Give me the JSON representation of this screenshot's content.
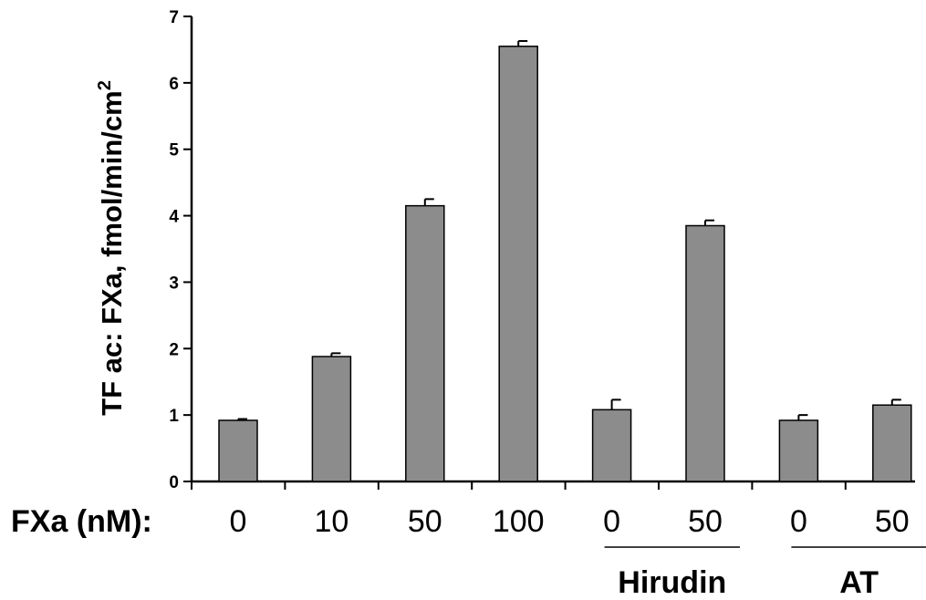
{
  "chart_data": {
    "type": "bar",
    "ylabel": "TF ac: FXa, fmol/min/cm",
    "ylabel_superscript": "2",
    "x_prefix_label": "FXa (nM):",
    "categories": [
      "0",
      "10",
      "50",
      "100",
      "0",
      "50",
      "0",
      "50"
    ],
    "values": [
      0.92,
      1.88,
      4.15,
      6.55,
      1.08,
      3.85,
      0.92,
      1.15
    ],
    "errors": [
      0.02,
      0.05,
      0.1,
      0.08,
      0.15,
      0.08,
      0.08,
      0.08
    ],
    "ylim": [
      0,
      7
    ],
    "yticks": [
      "0",
      "1",
      "2",
      "3",
      "4",
      "5",
      "6",
      "7"
    ],
    "groups": [
      {
        "label": "Hirudin",
        "categories": [
          4,
          5
        ]
      },
      {
        "label": "AT",
        "categories": [
          6,
          7
        ]
      }
    ],
    "bar_color": "#8c8c8c",
    "grid": false,
    "legend": "none"
  }
}
